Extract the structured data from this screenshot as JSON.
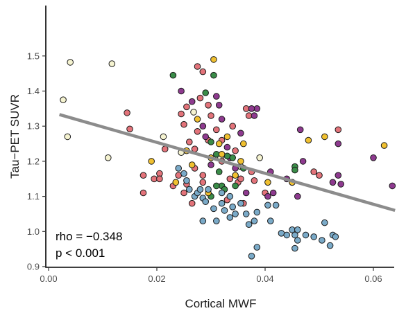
{
  "chart_data": {
    "type": "scatter",
    "xlabel": "Cortical MWF",
    "ylabel": "Tau−PET SUVR",
    "xlim": [
      0.0,
      0.064
    ],
    "ylim": [
      0.9,
      1.52
    ],
    "xticks": [
      0.0,
      0.02,
      0.04,
      0.06
    ],
    "xtick_labels": [
      "0.00",
      "0.02",
      "0.04",
      "0.06"
    ],
    "yticks": [
      0.9,
      1.0,
      1.1,
      1.2,
      1.3,
      1.4,
      1.5
    ],
    "ytick_labels": [
      "0.9",
      "1.0",
      "1.1",
      "1.2",
      "1.3",
      "1.4",
      "1.5"
    ],
    "grid": false,
    "annotations": {
      "rho": "rho = −0.348",
      "p": "p < 0.001"
    },
    "regression_line": {
      "x": [
        0.002,
        0.064
      ],
      "y": [
        1.333,
        1.06
      ],
      "color": "#8c8c8c"
    },
    "colors": {
      "cream": "#f5f3d0",
      "pink": "#e3737a",
      "purple": "#8e3a8f",
      "green": "#3a8c48",
      "yellow": "#f0c030",
      "blue": "#7aaac8"
    },
    "points": [
      {
        "x": 0.0027,
        "y": 1.375,
        "c": "cream"
      },
      {
        "x": 0.004,
        "y": 1.482,
        "c": "cream"
      },
      {
        "x": 0.0035,
        "y": 1.27,
        "c": "cream"
      },
      {
        "x": 0.0117,
        "y": 1.478,
        "c": "cream"
      },
      {
        "x": 0.011,
        "y": 1.21,
        "c": "cream"
      },
      {
        "x": 0.0212,
        "y": 1.27,
        "c": "cream"
      },
      {
        "x": 0.0245,
        "y": 1.225,
        "c": "cream"
      },
      {
        "x": 0.0268,
        "y": 1.34,
        "c": "cream"
      },
      {
        "x": 0.0318,
        "y": 1.21,
        "c": "cream"
      },
      {
        "x": 0.0355,
        "y": 1.185,
        "c": "cream"
      },
      {
        "x": 0.039,
        "y": 1.21,
        "c": "cream"
      },
      {
        "x": 0.0145,
        "y": 1.338,
        "c": "pink"
      },
      {
        "x": 0.015,
        "y": 1.292,
        "c": "pink"
      },
      {
        "x": 0.0175,
        "y": 1.16,
        "c": "pink"
      },
      {
        "x": 0.0175,
        "y": 1.11,
        "c": "pink"
      },
      {
        "x": 0.0195,
        "y": 1.15,
        "c": "pink"
      },
      {
        "x": 0.0205,
        "y": 1.165,
        "c": "pink"
      },
      {
        "x": 0.0215,
        "y": 1.235,
        "c": "pink"
      },
      {
        "x": 0.0205,
        "y": 1.15,
        "c": "pink"
      },
      {
        "x": 0.023,
        "y": 1.13,
        "c": "pink"
      },
      {
        "x": 0.024,
        "y": 1.16,
        "c": "pink"
      },
      {
        "x": 0.0245,
        "y": 1.335,
        "c": "pink"
      },
      {
        "x": 0.025,
        "y": 1.305,
        "c": "pink"
      },
      {
        "x": 0.0255,
        "y": 1.355,
        "c": "pink"
      },
      {
        "x": 0.026,
        "y": 1.255,
        "c": "pink"
      },
      {
        "x": 0.0255,
        "y": 1.135,
        "c": "pink"
      },
      {
        "x": 0.0265,
        "y": 1.08,
        "c": "pink"
      },
      {
        "x": 0.0275,
        "y": 1.47,
        "c": "pink"
      },
      {
        "x": 0.0285,
        "y": 1.455,
        "c": "pink"
      },
      {
        "x": 0.028,
        "y": 1.38,
        "c": "pink"
      },
      {
        "x": 0.0275,
        "y": 1.285,
        "c": "pink"
      },
      {
        "x": 0.027,
        "y": 1.235,
        "c": "pink"
      },
      {
        "x": 0.027,
        "y": 1.18,
        "c": "pink"
      },
      {
        "x": 0.0285,
        "y": 1.14,
        "c": "pink"
      },
      {
        "x": 0.0295,
        "y": 1.36,
        "c": "pink"
      },
      {
        "x": 0.03,
        "y": 1.33,
        "c": "pink"
      },
      {
        "x": 0.0295,
        "y": 1.26,
        "c": "pink"
      },
      {
        "x": 0.031,
        "y": 1.29,
        "c": "pink"
      },
      {
        "x": 0.032,
        "y": 1.26,
        "c": "pink"
      },
      {
        "x": 0.032,
        "y": 1.2,
        "c": "pink"
      },
      {
        "x": 0.0335,
        "y": 1.15,
        "c": "pink"
      },
      {
        "x": 0.034,
        "y": 1.3,
        "c": "pink"
      },
      {
        "x": 0.033,
        "y": 1.09,
        "c": "pink"
      },
      {
        "x": 0.0345,
        "y": 1.23,
        "c": "pink"
      },
      {
        "x": 0.035,
        "y": 1.14,
        "c": "pink"
      },
      {
        "x": 0.0355,
        "y": 1.15,
        "c": "pink"
      },
      {
        "x": 0.036,
        "y": 1.08,
        "c": "pink"
      },
      {
        "x": 0.0365,
        "y": 1.35,
        "c": "pink"
      },
      {
        "x": 0.037,
        "y": 1.33,
        "c": "pink"
      },
      {
        "x": 0.0375,
        "y": 1.17,
        "c": "pink"
      },
      {
        "x": 0.038,
        "y": 1.145,
        "c": "pink"
      },
      {
        "x": 0.04,
        "y": 1.11,
        "c": "pink"
      },
      {
        "x": 0.045,
        "y": 1.14,
        "c": "pink"
      },
      {
        "x": 0.049,
        "y": 1.17,
        "c": "pink"
      },
      {
        "x": 0.05,
        "y": 1.16,
        "c": "pink"
      },
      {
        "x": 0.0535,
        "y": 1.29,
        "c": "pink"
      },
      {
        "x": 0.025,
        "y": 1.11,
        "c": "pink"
      },
      {
        "x": 0.0285,
        "y": 1.16,
        "c": "pink"
      },
      {
        "x": 0.0245,
        "y": 1.4,
        "c": "purple"
      },
      {
        "x": 0.0265,
        "y": 1.37,
        "c": "purple"
      },
      {
        "x": 0.0285,
        "y": 1.3,
        "c": "purple"
      },
      {
        "x": 0.029,
        "y": 1.27,
        "c": "purple"
      },
      {
        "x": 0.031,
        "y": 1.385,
        "c": "purple"
      },
      {
        "x": 0.0315,
        "y": 1.36,
        "c": "purple"
      },
      {
        "x": 0.032,
        "y": 1.32,
        "c": "purple"
      },
      {
        "x": 0.033,
        "y": 1.24,
        "c": "purple"
      },
      {
        "x": 0.0345,
        "y": 1.18,
        "c": "purple"
      },
      {
        "x": 0.0355,
        "y": 1.28,
        "c": "purple"
      },
      {
        "x": 0.038,
        "y": 1.33,
        "c": "purple"
      },
      {
        "x": 0.0385,
        "y": 1.35,
        "c": "purple"
      },
      {
        "x": 0.0375,
        "y": 1.35,
        "c": "purple"
      },
      {
        "x": 0.0365,
        "y": 1.11,
        "c": "purple"
      },
      {
        "x": 0.041,
        "y": 1.17,
        "c": "purple"
      },
      {
        "x": 0.0405,
        "y": 1.1,
        "c": "purple"
      },
      {
        "x": 0.0415,
        "y": 1.11,
        "c": "purple"
      },
      {
        "x": 0.044,
        "y": 1.15,
        "c": "purple"
      },
      {
        "x": 0.0465,
        "y": 1.29,
        "c": "purple"
      },
      {
        "x": 0.047,
        "y": 1.2,
        "c": "purple"
      },
      {
        "x": 0.046,
        "y": 1.1,
        "c": "purple"
      },
      {
        "x": 0.0525,
        "y": 1.14,
        "c": "purple"
      },
      {
        "x": 0.0535,
        "y": 1.25,
        "c": "purple"
      },
      {
        "x": 0.0535,
        "y": 1.16,
        "c": "purple"
      },
      {
        "x": 0.054,
        "y": 1.135,
        "c": "purple"
      },
      {
        "x": 0.06,
        "y": 1.21,
        "c": "purple"
      },
      {
        "x": 0.0635,
        "y": 1.13,
        "c": "purple"
      },
      {
        "x": 0.03,
        "y": 1.19,
        "c": "purple"
      },
      {
        "x": 0.0335,
        "y": 1.21,
        "c": "purple"
      },
      {
        "x": 0.023,
        "y": 1.445,
        "c": "green"
      },
      {
        "x": 0.029,
        "y": 1.395,
        "c": "green"
      },
      {
        "x": 0.0305,
        "y": 1.445,
        "c": "green"
      },
      {
        "x": 0.03,
        "y": 1.255,
        "c": "green"
      },
      {
        "x": 0.031,
        "y": 1.22,
        "c": "green"
      },
      {
        "x": 0.0315,
        "y": 1.17,
        "c": "green"
      },
      {
        "x": 0.032,
        "y": 1.13,
        "c": "green"
      },
      {
        "x": 0.0325,
        "y": 1.12,
        "c": "green"
      },
      {
        "x": 0.033,
        "y": 1.215,
        "c": "green"
      },
      {
        "x": 0.034,
        "y": 1.21,
        "c": "green"
      },
      {
        "x": 0.0345,
        "y": 1.13,
        "c": "green"
      },
      {
        "x": 0.036,
        "y": 1.18,
        "c": "green"
      },
      {
        "x": 0.031,
        "y": 1.13,
        "c": "green"
      },
      {
        "x": 0.0455,
        "y": 1.185,
        "c": "green"
      },
      {
        "x": 0.0455,
        "y": 1.175,
        "c": "green"
      },
      {
        "x": 0.03,
        "y": 1.1,
        "c": "green"
      },
      {
        "x": 0.019,
        "y": 1.2,
        "c": "yellow"
      },
      {
        "x": 0.0235,
        "y": 1.14,
        "c": "yellow"
      },
      {
        "x": 0.0255,
        "y": 1.23,
        "c": "yellow"
      },
      {
        "x": 0.0265,
        "y": 1.19,
        "c": "yellow"
      },
      {
        "x": 0.0275,
        "y": 1.32,
        "c": "yellow"
      },
      {
        "x": 0.0295,
        "y": 1.11,
        "c": "yellow"
      },
      {
        "x": 0.0305,
        "y": 1.49,
        "c": "yellow"
      },
      {
        "x": 0.0315,
        "y": 1.25,
        "c": "yellow"
      },
      {
        "x": 0.032,
        "y": 1.22,
        "c": "yellow"
      },
      {
        "x": 0.033,
        "y": 1.27,
        "c": "yellow"
      },
      {
        "x": 0.0345,
        "y": 1.16,
        "c": "yellow"
      },
      {
        "x": 0.0355,
        "y": 1.2,
        "c": "yellow"
      },
      {
        "x": 0.036,
        "y": 1.25,
        "c": "yellow"
      },
      {
        "x": 0.0405,
        "y": 1.14,
        "c": "yellow"
      },
      {
        "x": 0.045,
        "y": 1.14,
        "c": "yellow"
      },
      {
        "x": 0.048,
        "y": 1.26,
        "c": "yellow"
      },
      {
        "x": 0.051,
        "y": 1.27,
        "c": "yellow"
      },
      {
        "x": 0.062,
        "y": 1.245,
        "c": "yellow"
      },
      {
        "x": 0.03,
        "y": 1.21,
        "c": "yellow"
      },
      {
        "x": 0.024,
        "y": 1.18,
        "c": "blue"
      },
      {
        "x": 0.025,
        "y": 1.165,
        "c": "blue"
      },
      {
        "x": 0.0255,
        "y": 1.145,
        "c": "blue"
      },
      {
        "x": 0.026,
        "y": 1.12,
        "c": "blue"
      },
      {
        "x": 0.027,
        "y": 1.1,
        "c": "blue"
      },
      {
        "x": 0.0275,
        "y": 1.11,
        "c": "blue"
      },
      {
        "x": 0.028,
        "y": 1.12,
        "c": "blue"
      },
      {
        "x": 0.0285,
        "y": 1.095,
        "c": "blue"
      },
      {
        "x": 0.029,
        "y": 1.085,
        "c": "blue"
      },
      {
        "x": 0.0295,
        "y": 1.12,
        "c": "blue"
      },
      {
        "x": 0.0285,
        "y": 1.03,
        "c": "blue"
      },
      {
        "x": 0.0305,
        "y": 1.065,
        "c": "blue"
      },
      {
        "x": 0.031,
        "y": 1.03,
        "c": "blue"
      },
      {
        "x": 0.032,
        "y": 1.08,
        "c": "blue"
      },
      {
        "x": 0.0325,
        "y": 1.06,
        "c": "blue"
      },
      {
        "x": 0.0335,
        "y": 1.1,
        "c": "blue"
      },
      {
        "x": 0.034,
        "y": 1.07,
        "c": "blue"
      },
      {
        "x": 0.0345,
        "y": 1.05,
        "c": "blue"
      },
      {
        "x": 0.0335,
        "y": 1.04,
        "c": "blue"
      },
      {
        "x": 0.0355,
        "y": 1.08,
        "c": "blue"
      },
      {
        "x": 0.037,
        "y": 1.02,
        "c": "blue"
      },
      {
        "x": 0.0365,
        "y": 1.05,
        "c": "blue"
      },
      {
        "x": 0.038,
        "y": 1.03,
        "c": "blue"
      },
      {
        "x": 0.0385,
        "y": 1.055,
        "c": "blue"
      },
      {
        "x": 0.0375,
        "y": 0.93,
        "c": "blue"
      },
      {
        "x": 0.0385,
        "y": 0.955,
        "c": "blue"
      },
      {
        "x": 0.0405,
        "y": 1.075,
        "c": "blue"
      },
      {
        "x": 0.041,
        "y": 1.03,
        "c": "blue"
      },
      {
        "x": 0.042,
        "y": 1.075,
        "c": "blue"
      },
      {
        "x": 0.043,
        "y": 0.995,
        "c": "blue"
      },
      {
        "x": 0.044,
        "y": 0.99,
        "c": "blue"
      },
      {
        "x": 0.045,
        "y": 1.005,
        "c": "blue"
      },
      {
        "x": 0.0455,
        "y": 0.99,
        "c": "blue"
      },
      {
        "x": 0.046,
        "y": 1.005,
        "c": "blue"
      },
      {
        "x": 0.0455,
        "y": 0.952,
        "c": "blue"
      },
      {
        "x": 0.046,
        "y": 0.975,
        "c": "blue"
      },
      {
        "x": 0.0475,
        "y": 0.99,
        "c": "blue"
      },
      {
        "x": 0.049,
        "y": 0.985,
        "c": "blue"
      },
      {
        "x": 0.0505,
        "y": 0.975,
        "c": "blue"
      },
      {
        "x": 0.051,
        "y": 1.025,
        "c": "blue"
      },
      {
        "x": 0.052,
        "y": 0.96,
        "c": "blue"
      },
      {
        "x": 0.0525,
        "y": 0.99,
        "c": "blue"
      },
      {
        "x": 0.053,
        "y": 0.985,
        "c": "blue"
      },
      {
        "x": 0.032,
        "y": 1.11,
        "c": "blue"
      }
    ]
  }
}
